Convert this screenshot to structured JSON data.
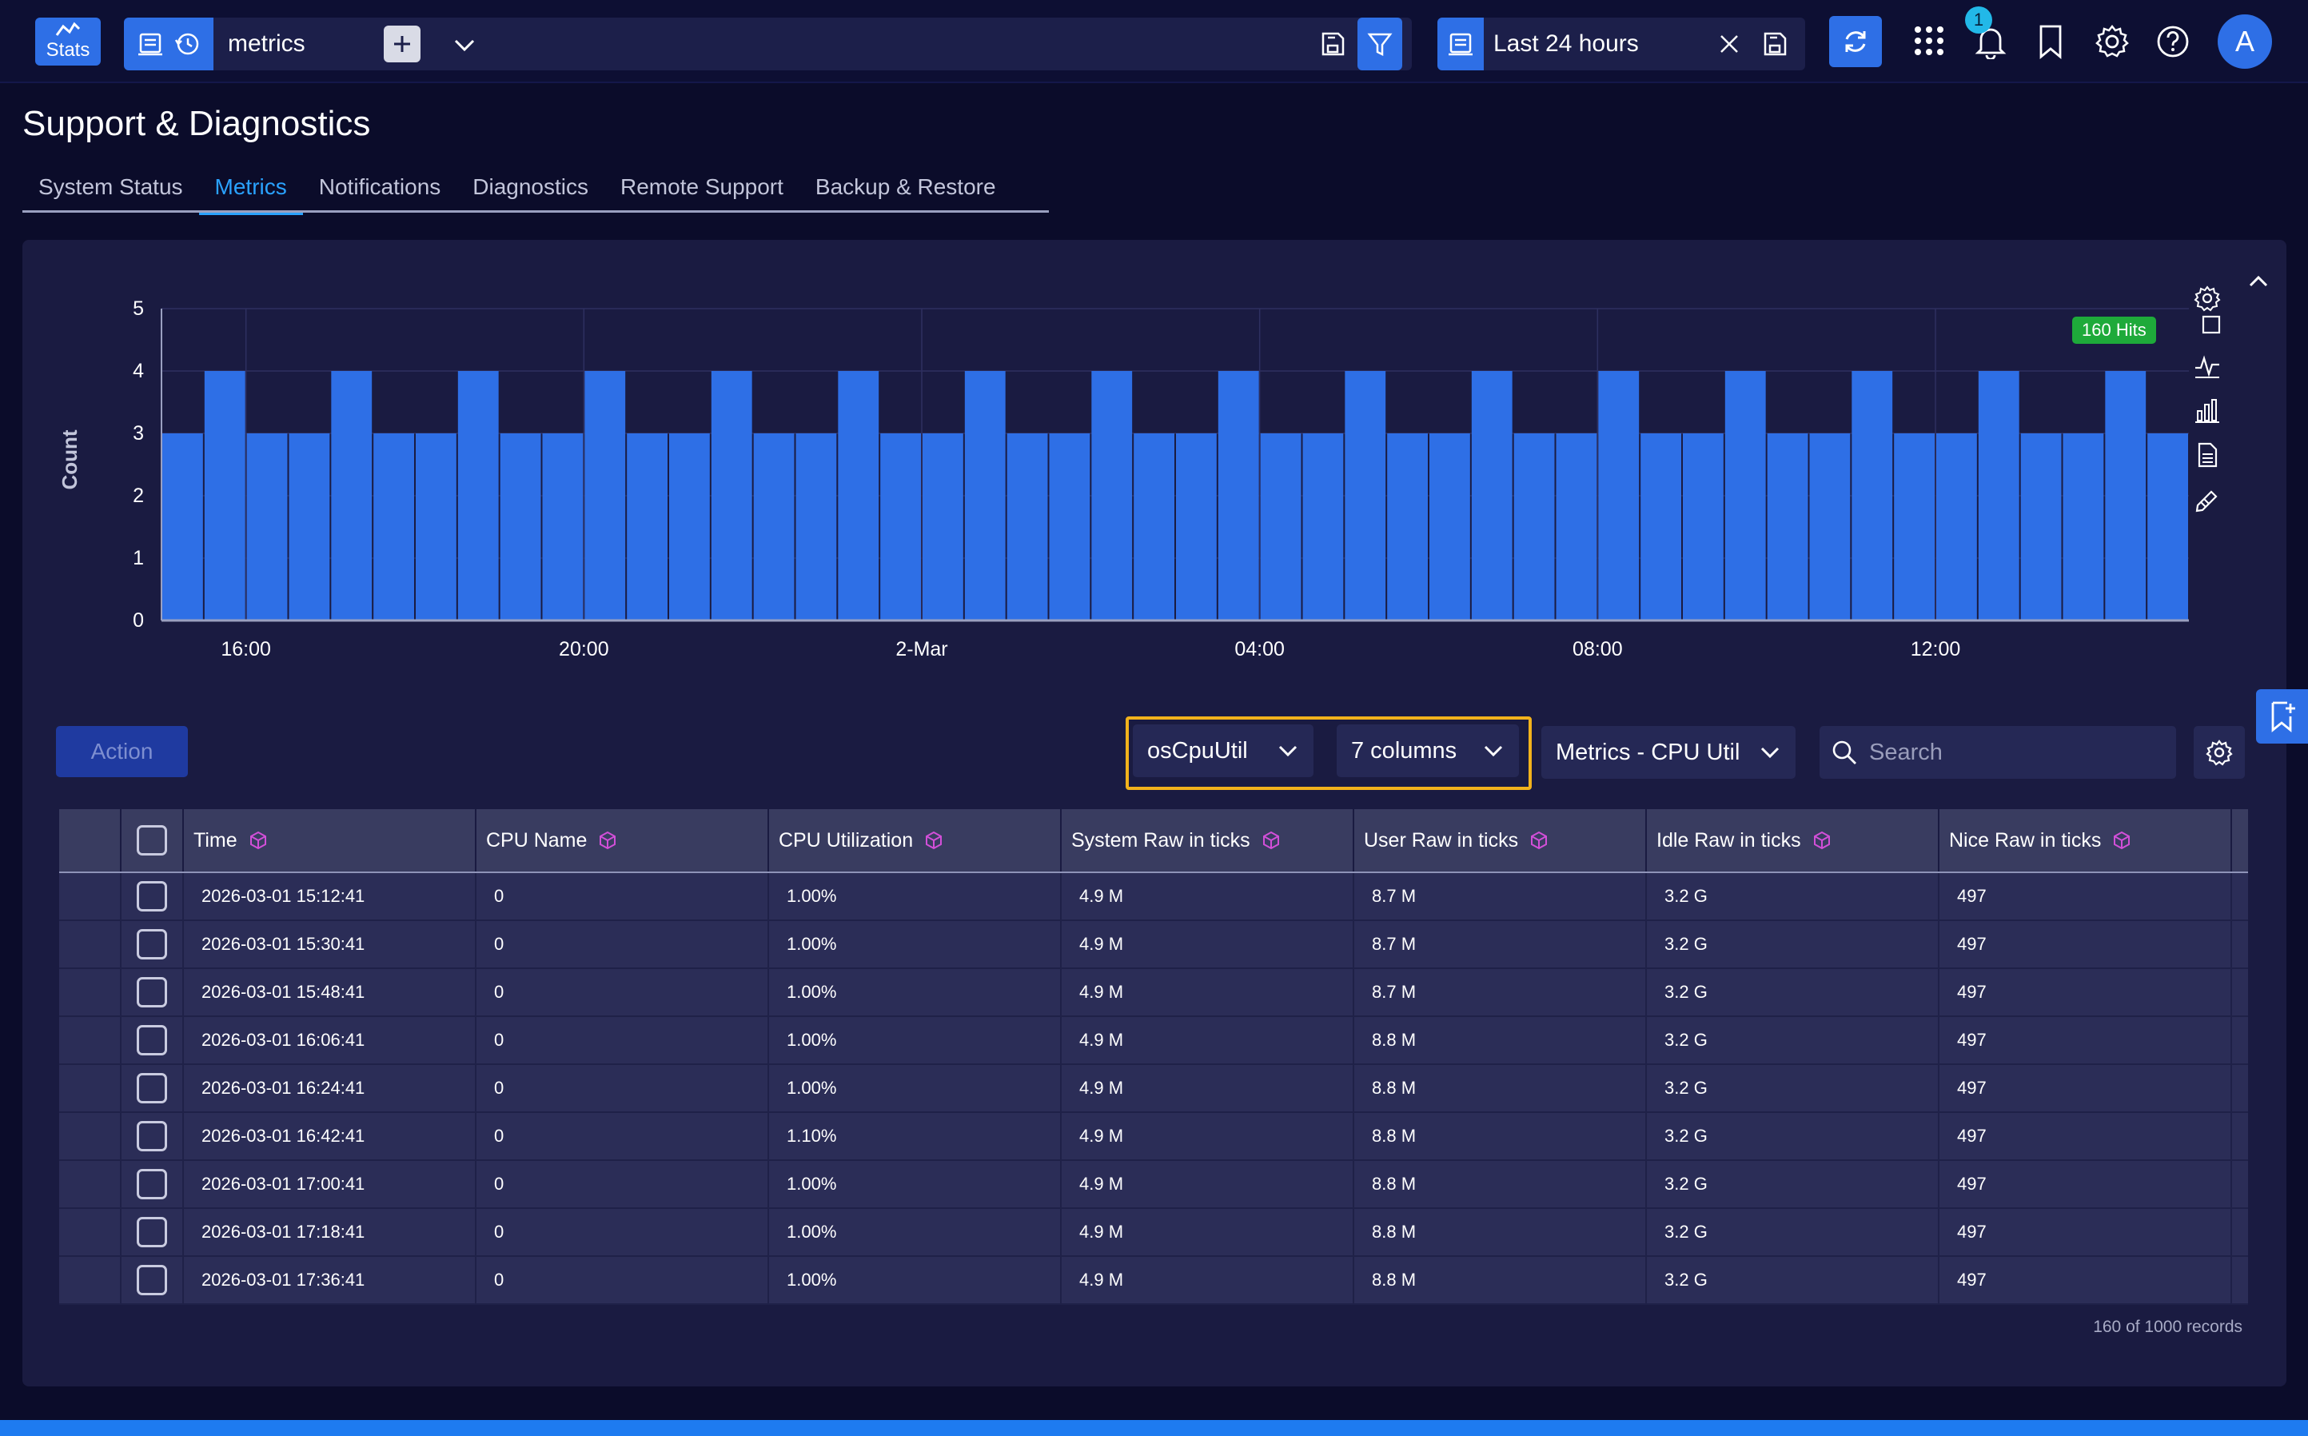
{
  "topbar": {
    "stats_label": "Stats",
    "query_text": "metrics",
    "time_range": "Last 24 hours",
    "notification_count": "1",
    "avatar_letter": "A"
  },
  "page": {
    "title": "Support & Diagnostics",
    "tabs": [
      {
        "label": "System Status",
        "active": false
      },
      {
        "label": "Metrics",
        "active": true
      },
      {
        "label": "Notifications",
        "active": false
      },
      {
        "label": "Diagnostics",
        "active": false
      },
      {
        "label": "Remote Support",
        "active": false
      },
      {
        "label": "Backup & Restore",
        "active": false
      }
    ]
  },
  "chart_data": {
    "type": "bar",
    "ylabel": "Count",
    "xlabel": "",
    "ylim": [
      0,
      5
    ],
    "yticks": [
      "0",
      "1",
      "2",
      "3",
      "4",
      "5"
    ],
    "xtick_labels": [
      "16:00",
      "20:00",
      "2-Mar",
      "04:00",
      "08:00",
      "12:00"
    ],
    "hits_label": "160 Hits",
    "values": [
      3,
      4,
      3,
      3,
      4,
      3,
      3,
      4,
      3,
      3,
      4,
      3,
      3,
      4,
      3,
      3,
      4,
      3,
      3,
      4,
      3,
      3,
      4,
      3,
      3,
      4,
      3,
      3,
      4,
      3,
      3,
      4,
      3,
      3,
      4,
      3,
      3,
      4,
      3,
      3,
      4,
      3,
      3,
      4,
      3,
      3,
      4,
      3
    ],
    "color": "#2e6fe6"
  },
  "table_controls": {
    "action_label": "Action",
    "source_select": "osCpuUtil",
    "columns_select": "7 columns",
    "view_select": "Metrics - CPU Util",
    "search_placeholder": "Search"
  },
  "table": {
    "headers": [
      "Time",
      "CPU Name",
      "CPU Utilization",
      "System Raw in ticks",
      "User Raw in ticks",
      "Idle Raw in ticks",
      "Nice Raw in ticks"
    ],
    "rows": [
      [
        "2026-03-01 15:12:41",
        "0",
        "1.00%",
        "4.9 M",
        "8.7 M",
        "3.2 G",
        "497"
      ],
      [
        "2026-03-01 15:30:41",
        "0",
        "1.00%",
        "4.9 M",
        "8.7 M",
        "3.2 G",
        "497"
      ],
      [
        "2026-03-01 15:48:41",
        "0",
        "1.00%",
        "4.9 M",
        "8.7 M",
        "3.2 G",
        "497"
      ],
      [
        "2026-03-01 16:06:41",
        "0",
        "1.00%",
        "4.9 M",
        "8.8 M",
        "3.2 G",
        "497"
      ],
      [
        "2026-03-01 16:24:41",
        "0",
        "1.00%",
        "4.9 M",
        "8.8 M",
        "3.2 G",
        "497"
      ],
      [
        "2026-03-01 16:42:41",
        "0",
        "1.10%",
        "4.9 M",
        "8.8 M",
        "3.2 G",
        "497"
      ],
      [
        "2026-03-01 17:00:41",
        "0",
        "1.00%",
        "4.9 M",
        "8.8 M",
        "3.2 G",
        "497"
      ],
      [
        "2026-03-01 17:18:41",
        "0",
        "1.00%",
        "4.9 M",
        "8.8 M",
        "3.2 G",
        "497"
      ],
      [
        "2026-03-01 17:36:41",
        "0",
        "1.00%",
        "4.9 M",
        "8.8 M",
        "3.2 G",
        "497"
      ]
    ],
    "records_label": "160 of 1000 records"
  },
  "colors": {
    "accent": "#2e6fe6",
    "highlight": "#f2b21c",
    "hits_badge": "#1eaa3a",
    "field_icon": "#d24fd8"
  }
}
